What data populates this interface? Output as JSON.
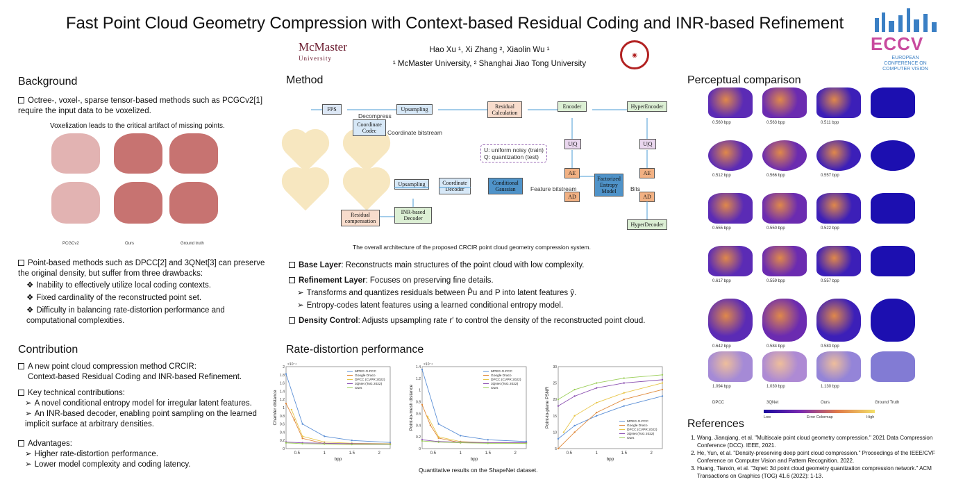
{
  "title": "Fast Point Cloud Geometry Compression with Context-based Residual Coding and INR-based Refinement",
  "authors": "Hao Xu ¹, Xi Zhang ², Xiaolin Wu ¹",
  "affiliations": "¹ McMaster University, ² Shanghai Jiao Tong University",
  "logos": {
    "mcmaster": "McMaster",
    "mcmaster_sub": "University",
    "eccv": "ECCV",
    "eccv_sub": "EUROPEAN CONFERENCE ON COMPUTER VISION"
  },
  "background": {
    "heading": "Background",
    "p1": "Octree-, voxel-, sparse tensor-based methods such as PCGCv2[1] require the input data to be voxelized.",
    "fig_caption": "Voxelization leads to the critical artifact of missing points.",
    "fig_labels": [
      "PCGCv2",
      "Ours",
      "Ground truth"
    ],
    "p2": "Point-based methods such as DPCC[2] and 3QNet[3] can preserve the original density, but suffer from three drawbacks:",
    "drawbacks": [
      "Inability to effectively utilize local coding contexts.",
      "Fixed cardinality of the reconstructed point set.",
      "Difficulty in balancing rate-distortion performance and computational complexities."
    ]
  },
  "contribution": {
    "heading": "Contribution",
    "p1": "A new point cloud compression method CRCIR:",
    "p1b": "Context-based Residual Coding and INR-based Refinement.",
    "p2": "Key technical contributions:",
    "items": [
      "A novel conditional entropy model for irregular latent features.",
      "An INR-based decoder, enabling point sampling on the learned implicit surface at arbitrary densities."
    ],
    "p3": "Advantages:",
    "adv": [
      "Higher rate-distortion performance.",
      "Lower model complexity and coding latency."
    ]
  },
  "method": {
    "heading": "Method",
    "blocks": [
      "FPS",
      "Upsampling",
      "Residual Calculation",
      "Encoder",
      "HyperEncoder",
      "Coordinate Codec",
      "Coordinate bitstream",
      "Decompress",
      "Upsampling",
      "Coordinate Decoder",
      "Conditional Gaussian",
      "Feature bitstream",
      "Factorized Entropy Model",
      "Bits",
      "AE",
      "AD",
      "AE",
      "AD",
      "U|Q",
      "U|Q",
      "INR-based Decoder",
      "Residual compensation",
      "HyperDecoder"
    ],
    "legend": [
      "U: uniform noisy (train)",
      "Q: quantization (test)"
    ],
    "caption": "The overall architecture of the proposed CRCIR point cloud geometry compression system.",
    "base": "Reconstructs main structures of the point cloud with low complexity.",
    "base_label": "Base Layer",
    "refine_label": "Refinement Layer",
    "refine": "Focuses on preserving fine details.",
    "refine_items": [
      "Transforms and quantizes residuals between P̂u and P into latent features ŷ.",
      "Entropy-codes latent features using a learned conditional entropy model."
    ],
    "density_label": "Density Control",
    "density": "Adjusts upsampling rate r′ to control the density of the reconstructed point cloud."
  },
  "rd": {
    "heading": "Rate-distortion performance",
    "caption": "Quantitative results on the ShapeNet dataset."
  },
  "chart_data": [
    {
      "type": "line",
      "xlabel": "bpp",
      "ylabel": "Chamfer distance",
      "scale": "×10⁻⁴",
      "xlim": [
        0.3,
        2.2
      ],
      "ylim": [
        0,
        2
      ],
      "xticks": [
        "0.5",
        "1",
        "1.5",
        "2"
      ],
      "yticks": [
        "0",
        "0.2",
        "0.4",
        "0.6",
        "0.8",
        "1",
        "1.2",
        "1.4",
        "1.6",
        "1.8",
        "2"
      ],
      "legend": "top-right",
      "series": [
        {
          "name": "MPEG G-PCC",
          "color": "#5b8fd6",
          "x": [
            0.3,
            0.6,
            1.0,
            1.5,
            2.2
          ],
          "y": [
            1.82,
            0.6,
            0.3,
            0.2,
            0.15
          ]
        },
        {
          "name": "Google Draco",
          "color": "#e08a3c",
          "x": [
            0.3,
            0.45,
            0.6,
            1.0,
            2.2
          ],
          "y": [
            1.1,
            0.7,
            0.25,
            0.12,
            0.1
          ]
        },
        {
          "name": "DPCC (CVPR 2022)",
          "color": "#e8c64a",
          "x": [
            0.4,
            0.6,
            1.0,
            1.5,
            2.2
          ],
          "y": [
            0.95,
            0.3,
            0.16,
            0.13,
            0.12
          ]
        },
        {
          "name": "3QNet (ToG 2022)",
          "color": "#8a4fb0",
          "x": [
            0.3,
            0.6,
            1.0,
            1.5,
            2.2
          ],
          "y": [
            0.16,
            0.14,
            0.13,
            0.12,
            0.11
          ]
        },
        {
          "name": "Ours",
          "color": "#9ccf5a",
          "x": [
            0.3,
            0.6,
            1.0,
            1.5,
            2.2
          ],
          "y": [
            0.14,
            0.12,
            0.11,
            0.1,
            0.1
          ]
        }
      ]
    },
    {
      "type": "line",
      "xlabel": "bpp",
      "ylabel": "Point-to-mesh distance",
      "scale": "×10⁻⁴",
      "xlim": [
        0.3,
        2.2
      ],
      "ylim": [
        0,
        1.4
      ],
      "xticks": [
        "0.5",
        "1",
        "1.5",
        "2"
      ],
      "yticks": [
        "0",
        "0.2",
        "0.4",
        "0.6",
        "0.8",
        "1",
        "1.2",
        "1.4"
      ],
      "legend": "top-right",
      "series": [
        {
          "name": "MPEG G-PCC",
          "color": "#5b8fd6",
          "x": [
            0.3,
            0.6,
            1.0,
            1.5,
            2.2
          ],
          "y": [
            1.35,
            0.42,
            0.22,
            0.15,
            0.12
          ]
        },
        {
          "name": "Google Draco",
          "color": "#e08a3c",
          "x": [
            0.3,
            0.45,
            0.6,
            1.0,
            2.2
          ],
          "y": [
            0.75,
            0.4,
            0.18,
            0.1,
            0.09
          ]
        },
        {
          "name": "DPCC (CVPR 2022)",
          "color": "#e8c64a",
          "x": [
            0.4,
            0.6,
            1.0,
            1.5,
            2.2
          ],
          "y": [
            0.55,
            0.2,
            0.12,
            0.1,
            0.1
          ]
        },
        {
          "name": "3QNet (ToG 2022)",
          "color": "#8a4fb0",
          "x": [
            0.3,
            0.6,
            1.0,
            1.5,
            2.2
          ],
          "y": [
            0.15,
            0.12,
            0.11,
            0.1,
            0.1
          ]
        },
        {
          "name": "Ours",
          "color": "#9ccf5a",
          "x": [
            0.3,
            0.6,
            1.0,
            1.5,
            2.2
          ],
          "y": [
            0.13,
            0.11,
            0.1,
            0.09,
            0.09
          ]
        }
      ]
    },
    {
      "type": "line",
      "xlabel": "bpp",
      "ylabel": "Point-to-plane PSNR",
      "xlim": [
        0.3,
        2.2
      ],
      "ylim": [
        5,
        30
      ],
      "xticks": [
        "0.5",
        "1",
        "1.5",
        "2"
      ],
      "yticks": [
        "5",
        "10",
        "15",
        "20",
        "25",
        "30"
      ],
      "legend": "bottom-right",
      "series": [
        {
          "name": "MPEG G-PCC",
          "color": "#5b8fd6",
          "x": [
            0.3,
            0.6,
            1.0,
            1.5,
            2.2
          ],
          "y": [
            8,
            12,
            15,
            18,
            21
          ]
        },
        {
          "name": "Google Draco",
          "color": "#e08a3c",
          "x": [
            0.3,
            0.6,
            1.0,
            1.5,
            2.2
          ],
          "y": [
            5,
            10,
            16,
            20,
            23
          ]
        },
        {
          "name": "DPCC (CVPR 2022)",
          "color": "#e8c64a",
          "x": [
            0.4,
            0.6,
            1.0,
            1.5,
            2.2
          ],
          "y": [
            10,
            15,
            19,
            22,
            25
          ]
        },
        {
          "name": "3QNet (ToG 2022)",
          "color": "#8a4fb0",
          "x": [
            0.3,
            0.6,
            1.0,
            1.5,
            2.2
          ],
          "y": [
            18,
            21,
            23.5,
            25,
            26
          ]
        },
        {
          "name": "Ours",
          "color": "#9ccf5a",
          "x": [
            0.3,
            0.6,
            1.0,
            1.5,
            2.2
          ],
          "y": [
            20,
            23,
            25,
            26.5,
            27.5
          ]
        }
      ]
    }
  ],
  "perceptual": {
    "heading": "Perceptual comparison",
    "rows": [
      [
        "0.560 bpp",
        "0.563 bpp",
        "0.511 bpp",
        ""
      ],
      [
        "0.512 bpp",
        "0.566 bpp",
        "0.557 bpp",
        ""
      ],
      [
        "0.555 bpp",
        "0.550 bpp",
        "0.522 bpp",
        ""
      ],
      [
        "0.617 bpp",
        "0.559 bpp",
        "0.557 bpp",
        ""
      ],
      [
        "0.642 bpp",
        "0.584 bpp",
        "0.583 bpp",
        ""
      ],
      [
        "1.094 bpp",
        "1.030 bpp",
        "1.130 bpp",
        ""
      ]
    ],
    "col_labels": [
      "DPCC",
      "3QNet",
      "Ours",
      "Ground Truth"
    ],
    "colormap": {
      "low": "Low",
      "label": "Error Colormap",
      "high": "High"
    }
  },
  "references": {
    "heading": "References",
    "items": [
      "Wang, Jianqiang, et al. \"Multiscale point cloud geometry compression.\" 2021 Data Compression Conference (DCC). IEEE, 2021.",
      "He, Yun, et al. \"Density-preserving deep point cloud compression.\" Proceedings of the IEEE/CVF Conference on Computer Vision and Pattern Recognition. 2022.",
      "Huang, Tianxin, et al. \"3qnet: 3d point cloud geometry quantization compression network.\" ACM Transactions on Graphics (TOG) 41.6 (2022): 1-13."
    ]
  }
}
